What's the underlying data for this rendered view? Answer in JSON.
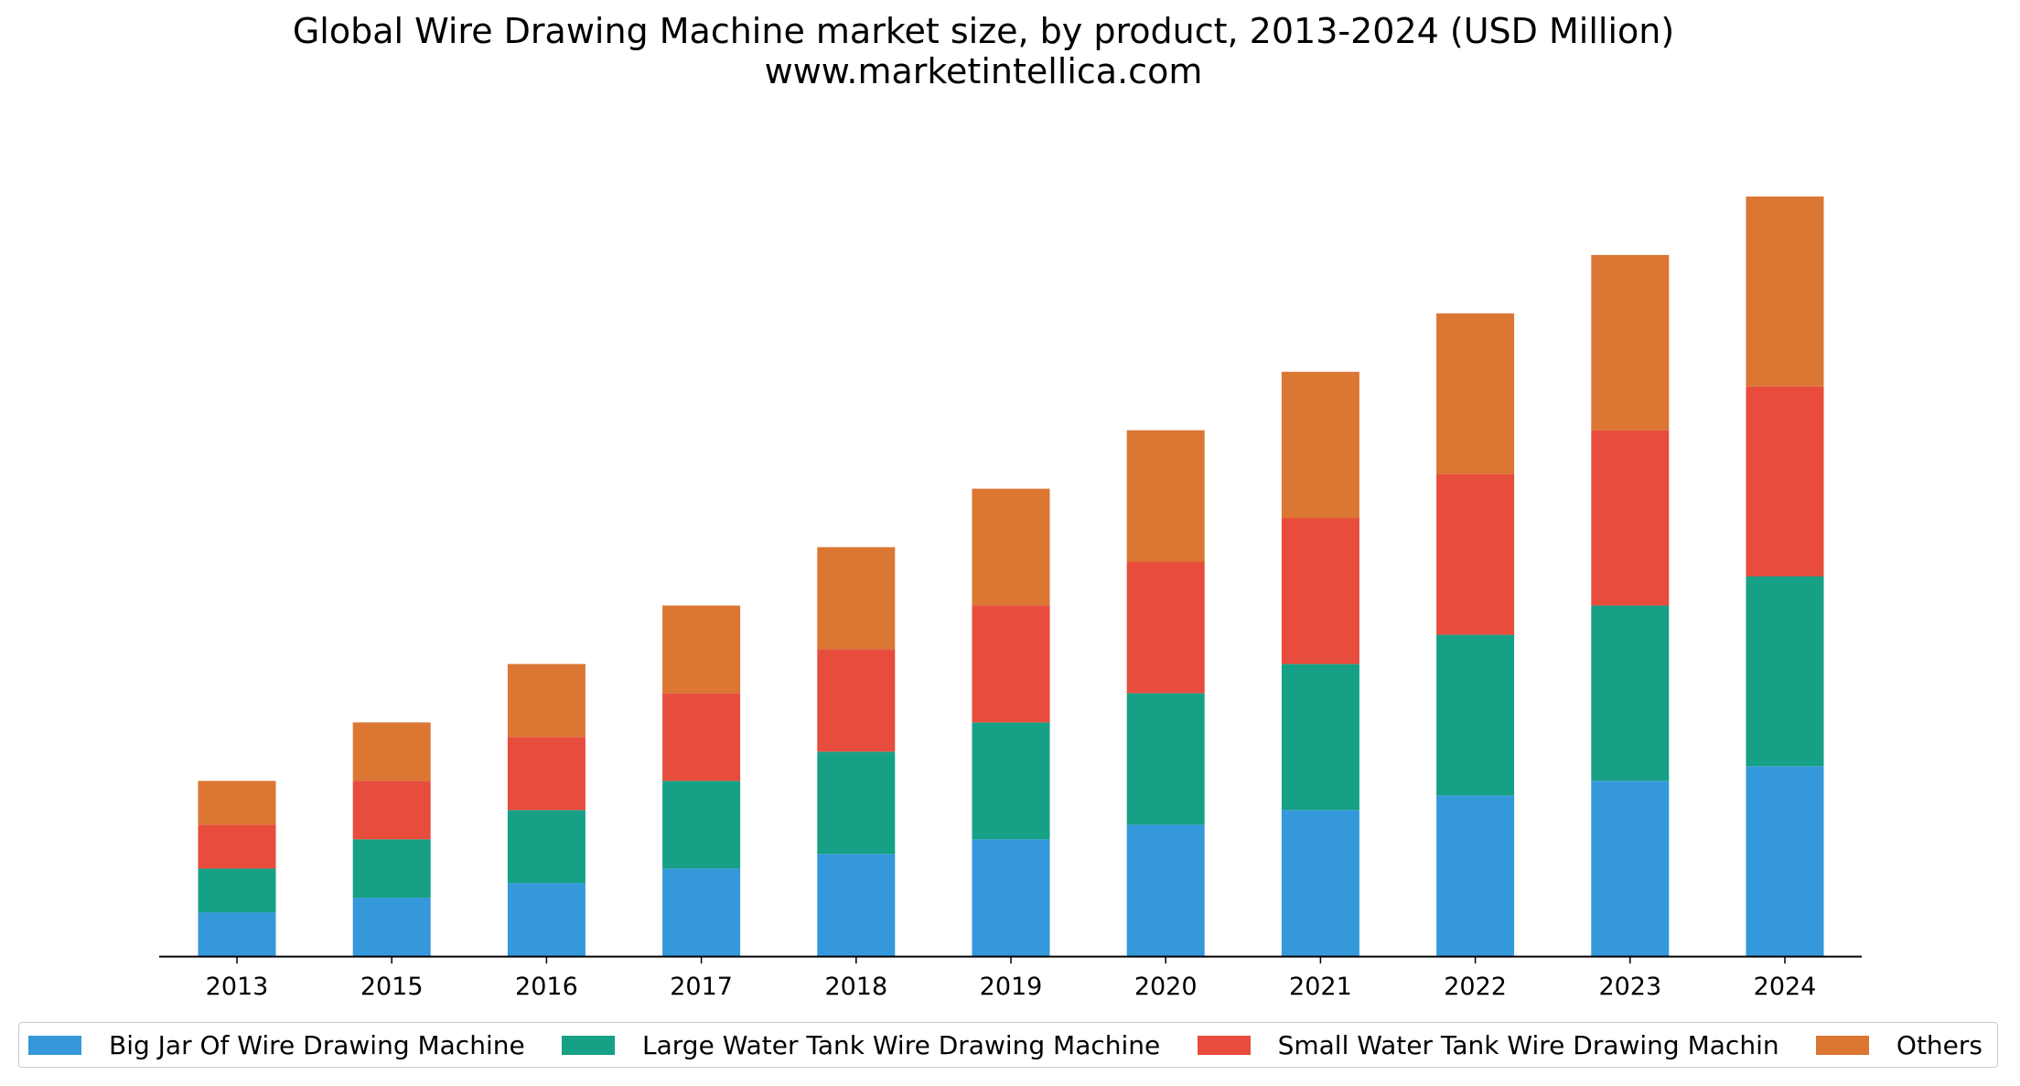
{
  "chart_data": {
    "type": "bar",
    "stacked": true,
    "title": "Global Wire Drawing Machine market size, by product, 2013-2024 (USD Million)",
    "subtitle": "www.marketintellica.com",
    "xlabel": "",
    "ylabel": "",
    "y_axis_visible": false,
    "grid": false,
    "legend_position": "bottom",
    "ylim": [
      0,
      27
    ],
    "categories": [
      "2013",
      "2015",
      "2016",
      "2017",
      "2018",
      "2019",
      "2020",
      "2021",
      "2022",
      "2023",
      "2024"
    ],
    "series": [
      {
        "name": "Big Jar Of Wire Drawing Machine",
        "color": "#3498db",
        "values": [
          1.5,
          2.0,
          2.5,
          3.0,
          3.5,
          4.0,
          4.5,
          5.0,
          5.5,
          6.0,
          6.5
        ]
      },
      {
        "name": "Large Water Tank Wire Drawing Machine",
        "color": "#16a085",
        "values": [
          1.5,
          2.0,
          2.5,
          3.0,
          3.5,
          4.0,
          4.5,
          5.0,
          5.5,
          6.0,
          6.5
        ]
      },
      {
        "name": "Small Water Tank Wire Drawing Machin",
        "color": "#e74c3c",
        "values": [
          1.5,
          2.0,
          2.5,
          3.0,
          3.5,
          4.0,
          4.5,
          5.0,
          5.5,
          6.0,
          6.5
        ]
      },
      {
        "name": "Others",
        "color": "#db7633",
        "values": [
          1.5,
          2.0,
          2.5,
          3.0,
          3.5,
          4.0,
          4.5,
          5.0,
          5.5,
          6.0,
          6.5
        ]
      }
    ]
  }
}
